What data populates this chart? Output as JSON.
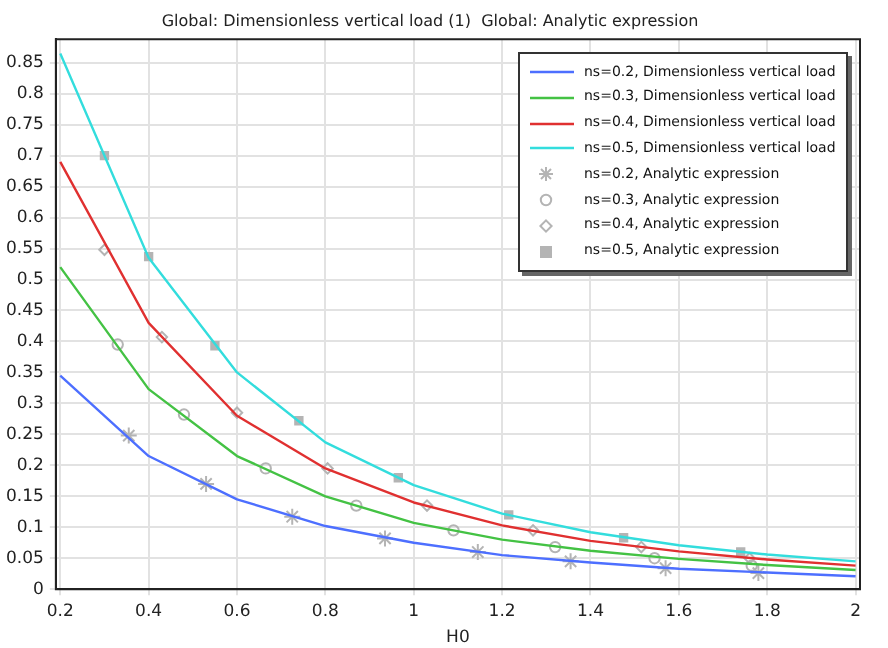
{
  "chart_data": {
    "type": "line",
    "title": "Global: Dimensionless vertical load (1)  Global: Analytic expression",
    "xlabel": "H0",
    "xlim": [
      0.19,
      2.01
    ],
    "ylim": [
      0,
      0.888
    ],
    "xticks": [
      0.2,
      0.4,
      0.6,
      0.8,
      1,
      1.2,
      1.4,
      1.6,
      1.8,
      2
    ],
    "yticks": [
      0,
      0.05,
      0.1,
      0.15,
      0.2,
      0.25,
      0.3,
      0.35,
      0.4,
      0.45,
      0.5,
      0.55,
      0.6,
      0.65,
      0.7,
      0.75,
      0.8,
      0.85
    ],
    "grid": true,
    "legend": "top right",
    "series": [
      {
        "name": "ns=0.2, Dimensionless vertical load",
        "type": "line",
        "marker": "none",
        "color": "#4d6fff",
        "x": [
          0.2,
          0.4,
          0.6,
          0.8,
          1,
          1.2,
          1.4,
          1.6,
          1.8,
          2
        ],
        "values": [
          0.345,
          0.215,
          0.145,
          0.102,
          0.075,
          0.055,
          0.043,
          0.033,
          0.027,
          0.021
        ]
      },
      {
        "name": "ns=0.3, Dimensionless vertical load",
        "type": "line",
        "marker": "none",
        "color": "#44c244",
        "x": [
          0.2,
          0.4,
          0.6,
          0.8,
          1,
          1.2,
          1.4,
          1.6,
          1.8,
          2
        ],
        "values": [
          0.52,
          0.323,
          0.215,
          0.15,
          0.107,
          0.08,
          0.062,
          0.049,
          0.039,
          0.031
        ]
      },
      {
        "name": "ns=0.4, Dimensionless vertical load",
        "type": "line",
        "marker": "none",
        "color": "#e03030",
        "x": [
          0.2,
          0.4,
          0.6,
          0.8,
          1,
          1.2,
          1.4,
          1.6,
          1.8,
          2
        ],
        "values": [
          0.69,
          0.43,
          0.28,
          0.195,
          0.14,
          0.103,
          0.078,
          0.061,
          0.048,
          0.038
        ]
      },
      {
        "name": "ns=0.5, Dimensionless vertical load",
        "type": "line",
        "marker": "none",
        "color": "#33dddd",
        "x": [
          0.2,
          0.4,
          0.6,
          0.8,
          1,
          1.2,
          1.4,
          1.6,
          1.8,
          2
        ],
        "values": [
          0.865,
          0.535,
          0.35,
          0.237,
          0.168,
          0.122,
          0.092,
          0.071,
          0.056,
          0.045
        ]
      },
      {
        "name": "ns=0.2, Analytic expression",
        "type": "scatter",
        "marker": "cross",
        "color": "#b4b4b4",
        "x": [
          0.355,
          0.53,
          0.725,
          0.935,
          1.145,
          1.355,
          1.57,
          1.78
        ],
        "values": [
          0.248,
          0.17,
          0.117,
          0.082,
          0.06,
          0.045,
          0.034,
          0.026
        ]
      },
      {
        "name": "ns=0.3, Analytic expression",
        "type": "scatter",
        "marker": "circle",
        "color": "#b4b4b4",
        "x": [
          0.33,
          0.48,
          0.665,
          0.87,
          1.09,
          1.32,
          1.545,
          1.765
        ],
        "values": [
          0.395,
          0.282,
          0.195,
          0.135,
          0.095,
          0.068,
          0.05,
          0.038
        ]
      },
      {
        "name": "ns=0.4, Analytic expression",
        "type": "scatter",
        "marker": "diamond",
        "color": "#b4b4b4",
        "x": [
          0.3,
          0.43,
          0.6,
          0.805,
          1.03,
          1.27,
          1.515,
          1.76
        ],
        "values": [
          0.548,
          0.407,
          0.285,
          0.195,
          0.135,
          0.095,
          0.068,
          0.05
        ]
      },
      {
        "name": "ns=0.5, Analytic expression",
        "type": "scatter",
        "marker": "square",
        "color": "#b4b4b4",
        "x": [
          0.3,
          0.4,
          0.55,
          0.74,
          0.965,
          1.215,
          1.475,
          1.74
        ],
        "values": [
          0.7,
          0.537,
          0.393,
          0.272,
          0.18,
          0.12,
          0.083,
          0.06
        ]
      }
    ]
  }
}
